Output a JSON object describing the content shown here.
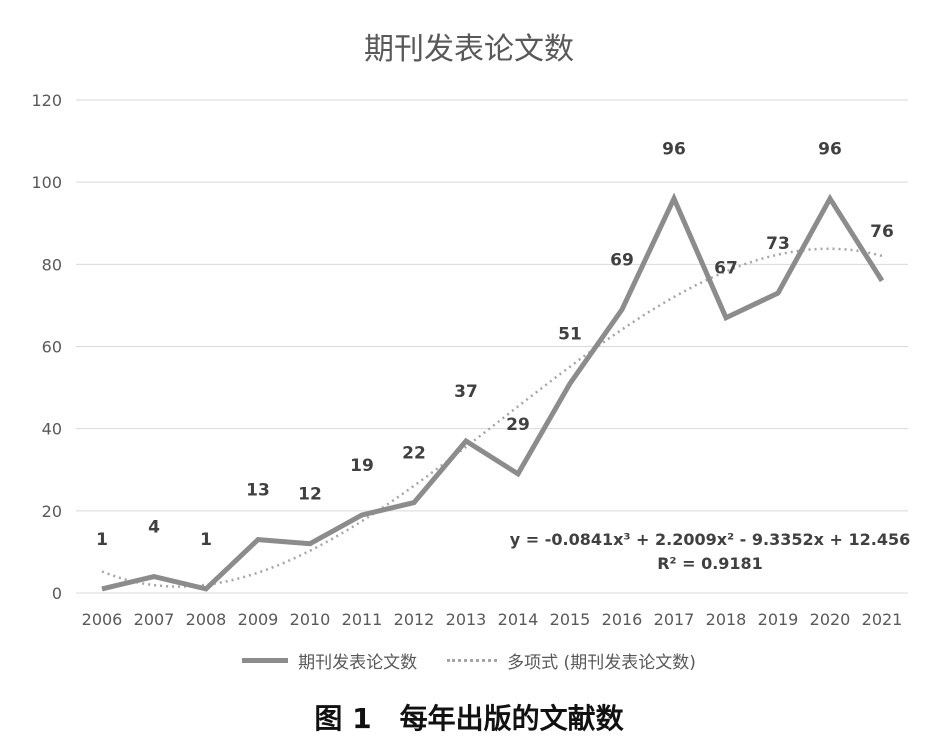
{
  "caption": "图 1　每年出版的文献数",
  "colors": {
    "series": "#8c8c8c",
    "trend": "#a6a6a6",
    "grid": "#d9d9d9",
    "text": "#595959"
  },
  "chart_data": {
    "type": "line",
    "title": "期刊发表论文数",
    "xlabel": "",
    "ylabel": "",
    "categories": [
      "2006",
      "2007",
      "2008",
      "2009",
      "2010",
      "2011",
      "2012",
      "2013",
      "2014",
      "2015",
      "2016",
      "2017",
      "2018",
      "2019",
      "2020",
      "2021"
    ],
    "yticks": [
      "0",
      "20",
      "40",
      "60",
      "80",
      "100",
      "120"
    ],
    "ylim": [
      0,
      120
    ],
    "grid": true,
    "legend_position": "bottom",
    "series": [
      {
        "name": "期刊发表论文数",
        "values": [
          1,
          4,
          1,
          13,
          12,
          19,
          22,
          37,
          29,
          51,
          69,
          96,
          67,
          73,
          96,
          76
        ],
        "labels": [
          "1",
          "4",
          "1",
          "13",
          "12",
          "19",
          "22",
          "37",
          "29",
          "51",
          "69",
          "96",
          "67",
          "73",
          "96",
          "76"
        ]
      }
    ],
    "trendline": {
      "name": "多项式 (期刊发表论文数)",
      "type": "polynomial",
      "coefficients": [
        -0.0841,
        2.2009,
        -9.3352,
        12.456
      ],
      "equation": "y = -0.0841x³ + 2.2009x² - 9.3352x + 12.456",
      "r_squared": "R² = 0.9181"
    }
  }
}
